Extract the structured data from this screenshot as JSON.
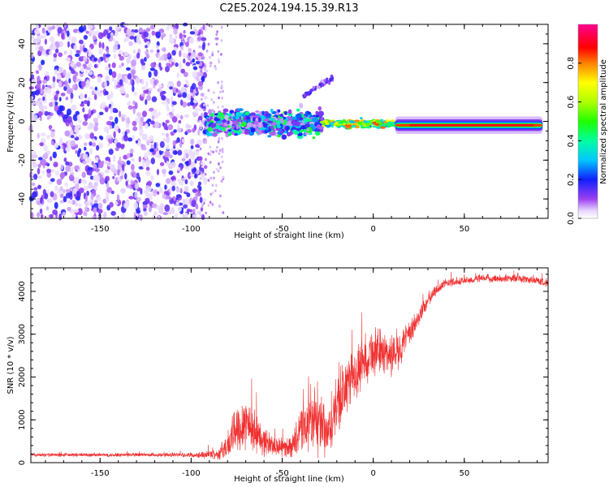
{
  "figure": {
    "title": "C2E5.2024.194.15.39.R13"
  },
  "colors": {
    "snr_line": "#f03030",
    "axis": "#000000",
    "background": "#ffffff"
  },
  "chart_data": [
    {
      "type": "heatmap",
      "description_of_axes": "spectrogram",
      "xlabel": "Height of straight line (km)",
      "ylabel": "Frequency (Hz)",
      "xlim": [
        -188,
        96
      ],
      "ylim": [
        -50,
        50
      ],
      "xticks": [
        -150,
        -100,
        -50,
        0,
        50
      ],
      "yticks": [
        -40,
        -20,
        0,
        20,
        40
      ],
      "colorbar": {
        "label": "Normalized spectral amplitude",
        "ticks": [
          0.0,
          0.2,
          0.4,
          0.6,
          0.8
        ],
        "range": [
          0,
          1
        ],
        "colormap": "rainbow (white, purple, blue, cyan, green, yellow, orange, red, magenta)"
      },
      "features": [
        {
          "segment": "noise",
          "x_range": [
            -188,
            -92
          ],
          "freq_range": [
            -50,
            50
          ],
          "amplitude": "0.05-0.25"
        },
        {
          "segment": "turbulent",
          "x_range": [
            -92,
            -28
          ],
          "freq_range": [
            -12,
            8
          ],
          "amplitude": "0.1-0.5"
        },
        {
          "segment": "sideband",
          "x_range": [
            -40,
            -22
          ],
          "freq_range": [
            12,
            24
          ],
          "amplitude": "0.05-0.15"
        },
        {
          "segment": "transition",
          "x_range": [
            -28,
            15
          ],
          "freq_range": [
            -4,
            2
          ],
          "amplitude": "0.3-0.9"
        },
        {
          "segment": "carrier",
          "x_range": [
            15,
            96
          ],
          "freq_center": -2,
          "amplitude": "0.8-1.0"
        }
      ]
    },
    {
      "type": "line",
      "xlabel": "Height of straight line (km)",
      "ylabel": "SNR (10 * v/v)",
      "xlim": [
        -188,
        96
      ],
      "ylim": [
        0,
        4550
      ],
      "xticks": [
        -150,
        -100,
        -50,
        0,
        50
      ],
      "yticks": [
        0,
        1000,
        2000,
        3000,
        4000
      ],
      "series": [
        {
          "envelope_x": [
            -188,
            -100,
            -85,
            -80,
            -75,
            -70,
            -65,
            -60,
            -55,
            -50,
            -45,
            -40,
            -35,
            -30,
            -25,
            -20,
            -15,
            -10,
            -5,
            0,
            5,
            10,
            15,
            20,
            25,
            30,
            35,
            40,
            50,
            60,
            70,
            80,
            90,
            96
          ],
          "envelope_mean": [
            180,
            180,
            200,
            400,
            800,
            1000,
            700,
            500,
            400,
            350,
            380,
            700,
            1000,
            900,
            600,
            1300,
            1800,
            2000,
            2400,
            2600,
            2600,
            2500,
            2700,
            3000,
            3400,
            3800,
            4050,
            4200,
            4250,
            4300,
            4300,
            4300,
            4250,
            4200
          ],
          "envelope_spread": [
            50,
            60,
            150,
            400,
            700,
            800,
            600,
            400,
            300,
            250,
            300,
            600,
            900,
            900,
            700,
            900,
            800,
            700,
            700,
            700,
            600,
            600,
            500,
            350,
            300,
            200,
            150,
            120,
            110,
            110,
            110,
            110,
            110,
            110
          ]
        }
      ]
    }
  ]
}
